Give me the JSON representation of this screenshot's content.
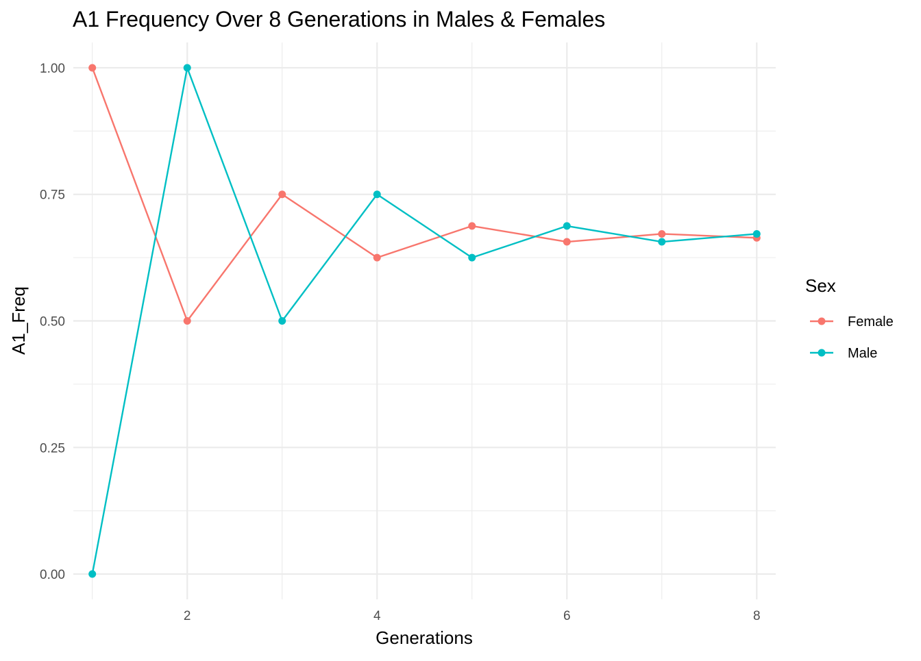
{
  "chart_data": {
    "type": "line",
    "title": "A1 Frequency Over 8 Generations in Males & Females",
    "xlabel": "Generations",
    "ylabel": "A1_Freq",
    "x": [
      1,
      2,
      3,
      4,
      5,
      6,
      7,
      8
    ],
    "xlim": [
      0.8,
      8.2
    ],
    "ylim": [
      -0.05,
      1.05
    ],
    "x_ticks": [
      2,
      4,
      6,
      8
    ],
    "x_tick_labels": [
      "2",
      "4",
      "6",
      "8"
    ],
    "y_ticks": [
      0,
      0.25,
      0.5,
      0.75,
      1.0
    ],
    "y_tick_labels": [
      "0.00",
      "0.25",
      "0.50",
      "0.75",
      "1.00"
    ],
    "grid": true,
    "legend": {
      "title": "Sex",
      "position": "right"
    },
    "series": [
      {
        "name": "Female",
        "color": "#F8766D",
        "values": [
          1.0,
          0.5,
          0.75,
          0.625,
          0.6875,
          0.65625,
          0.671875,
          0.6640625
        ]
      },
      {
        "name": "Male",
        "color": "#00BFC4",
        "values": [
          0.0,
          1.0,
          0.5,
          0.75,
          0.625,
          0.6875,
          0.65625,
          0.671875
        ]
      }
    ]
  }
}
